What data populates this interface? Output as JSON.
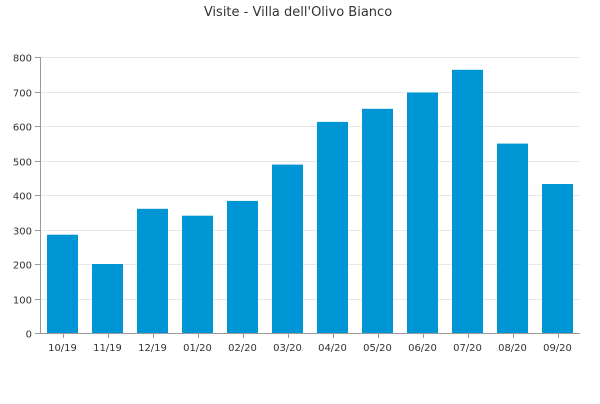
{
  "chart_data": {
    "type": "bar",
    "title": "Visite - Villa dell'Olivo Bianco",
    "categories": [
      "10/19",
      "11/19",
      "12/19",
      "01/20",
      "02/20",
      "03/20",
      "04/20",
      "05/20",
      "06/20",
      "07/20",
      "08/20",
      "09/20"
    ],
    "values": [
      285,
      200,
      360,
      340,
      383,
      488,
      612,
      650,
      697,
      763,
      549,
      432
    ],
    "ylim": [
      0,
      800
    ],
    "yticks": [
      0,
      100,
      200,
      300,
      400,
      500,
      600,
      700,
      800
    ],
    "grid": true,
    "colors": {
      "bar": "#0096d6",
      "grid": "#e8e8e8",
      "axis": "#999999",
      "text": "#333333"
    }
  }
}
